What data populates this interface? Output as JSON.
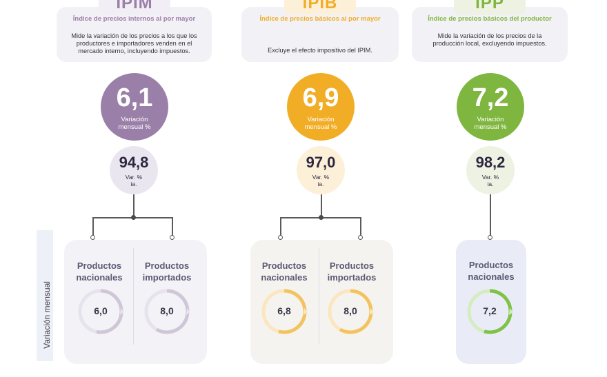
{
  "ipim": {
    "tab": "IPIM",
    "title": "Índice de precios internos al por mayor",
    "description": "Mide la variación de los precios a los que los productores e importadores venden en el mercado interno, incluyendo impuestos.",
    "monthly_value": "6,1",
    "monthly_label": "Variación mensual %",
    "yearly_value": "94,8",
    "yearly_label_1": "Var. %",
    "yearly_label_2": "ia.",
    "products": [
      {
        "label_1": "Productos",
        "label_2": "nacionales",
        "value": "6,0"
      },
      {
        "label_1": "Productos",
        "label_2": "importados",
        "value": "8,0"
      }
    ]
  },
  "ipib": {
    "tab": "IPIB",
    "title": "Índice de precios básicos al por mayor",
    "description": "Excluye el efecto impositivo del IPIM.",
    "monthly_value": "6,9",
    "monthly_label": "Variación mensual %",
    "yearly_value": "97,0",
    "yearly_label_1": "Var. %",
    "yearly_label_2": "ia.",
    "products": [
      {
        "label_1": "Productos",
        "label_2": "nacionales",
        "value": "6,8"
      },
      {
        "label_1": "Productos",
        "label_2": "importados",
        "value": "8,0"
      }
    ]
  },
  "ipp": {
    "tab": "IPP",
    "title": "Índice de precios básicos del productor",
    "description": "Mide la variación de los precios de la producción local, excluyendo impuestos.",
    "monthly_value": "7,2",
    "monthly_label": "Variación mensual %",
    "yearly_value": "98,2",
    "yearly_label_1": "Var. %",
    "yearly_label_2": "ia.",
    "products": [
      {
        "label_1": "Productos",
        "label_2": "nacionales",
        "value": "7,2"
      }
    ]
  },
  "side_label": "Variación mensual",
  "colors": {
    "ipim": "#9a7fa8",
    "ipib": "#f2ad26",
    "ipp": "#7fb63f",
    "ipim_light": "#eae6f0",
    "ipib_light": "#fdf0d9",
    "ipp_light": "#eef2e2"
  }
}
